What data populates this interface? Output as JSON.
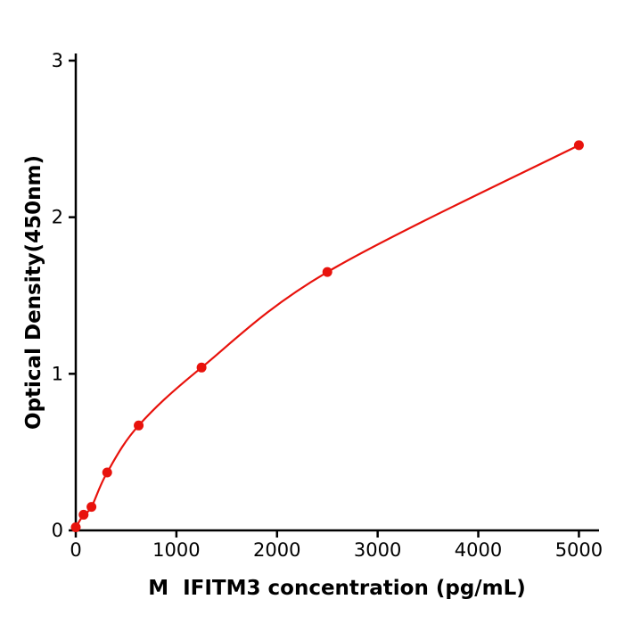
{
  "chart_data": {
    "type": "line",
    "title": "",
    "xlabel": "M  IFITM3 concentration (pg/mL)",
    "ylabel": "Optical Density(450nm)",
    "x": [
      0,
      78,
      156,
      312,
      625,
      1250,
      2500,
      5000
    ],
    "y": [
      0.02,
      0.1,
      0.15,
      0.37,
      0.67,
      1.04,
      1.65,
      2.46
    ],
    "xlim": [
      0,
      5200
    ],
    "ylim": [
      0,
      3
    ],
    "xticks": [
      0,
      1000,
      2000,
      3000,
      4000,
      5000
    ],
    "yticks": [
      0,
      1,
      2,
      3
    ],
    "line_color": "#e8120c",
    "marker_color": "#e8120c",
    "axis_color": "#000000",
    "grid": false,
    "legend": "none"
  }
}
